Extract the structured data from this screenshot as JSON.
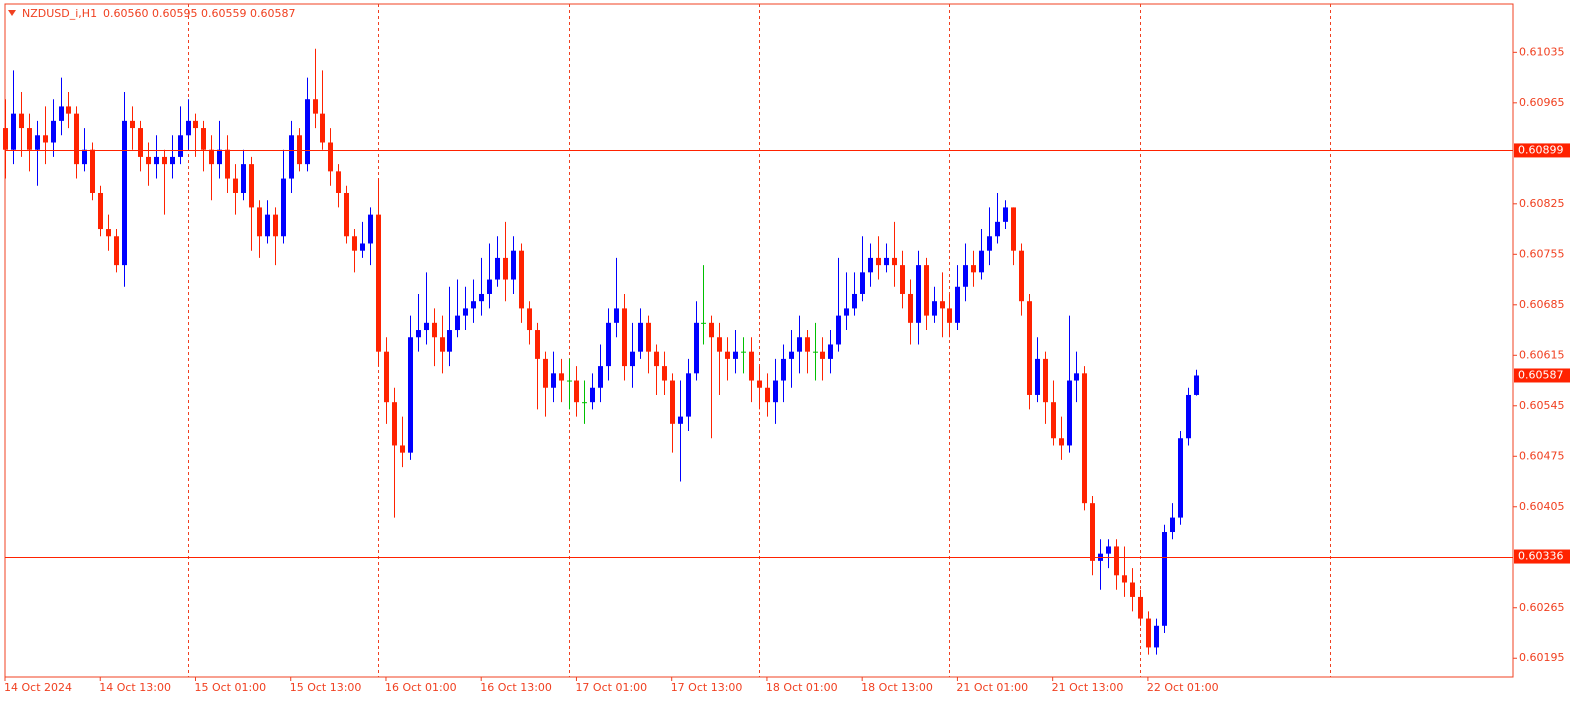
{
  "header": {
    "symbol": "NZDUSD_i,H1",
    "ohlc": "0.60560 0.60595 0.60559 0.60587"
  },
  "chart_data": {
    "type": "candlestick",
    "colors": {
      "up": "#0000ff",
      "down": "#ff2200",
      "doji": "#00c000",
      "frame": "#f04020"
    },
    "xlim": [
      0,
      190
    ],
    "ylim": [
      0.60169,
      0.61102
    ],
    "yticks": [
      0.61035,
      0.60965,
      0.60825,
      0.60755,
      0.60685,
      0.60615,
      0.60545,
      0.60475,
      0.60405,
      0.60265,
      0.60195
    ],
    "xticks": [
      {
        "value": 0,
        "label": "14 Oct 2024"
      },
      {
        "value": 12,
        "label": "14 Oct 13:00"
      },
      {
        "value": 24,
        "label": "15 Oct 01:00"
      },
      {
        "value": 36,
        "label": "15 Oct 13:00"
      },
      {
        "value": 48,
        "label": "16 Oct 01:00"
      },
      {
        "value": 60,
        "label": "16 Oct 13:00"
      },
      {
        "value": 72,
        "label": "17 Oct 01:00"
      },
      {
        "value": 84,
        "label": "17 Oct 13:00"
      },
      {
        "value": 96,
        "label": "18 Oct 01:00"
      },
      {
        "value": 108,
        "label": "18 Oct 13:00"
      },
      {
        "value": 120,
        "label": "21 Oct 01:00"
      },
      {
        "value": 132,
        "label": "21 Oct 13:00"
      },
      {
        "value": 144,
        "label": "22 Oct 01:00"
      }
    ],
    "separators": [
      23,
      47,
      71,
      95,
      119,
      143,
      167
    ],
    "hlines": [
      0.60899,
      0.60336
    ],
    "open": [
      0.6093,
      0.609,
      0.6095,
      0.6093,
      0.609,
      0.6092,
      0.6091,
      0.6094,
      0.6096,
      0.6095,
      0.6088,
      0.609,
      0.6084,
      0.6079,
      0.6078,
      0.6074,
      0.6094,
      0.6093,
      0.6089,
      0.6088,
      0.6089,
      0.6088,
      0.6089,
      0.6092,
      0.6094,
      0.6093,
      0.609,
      0.6088,
      0.609,
      0.6086,
      0.6084,
      0.6088,
      0.6082,
      0.6078,
      0.6081,
      0.6078,
      0.6086,
      0.6092,
      0.6088,
      0.6097,
      0.6095,
      0.6091,
      0.6087,
      0.6084,
      0.6078,
      0.6076,
      0.6077,
      0.6081,
      0.6062,
      0.6055,
      0.6049,
      0.6048,
      0.6064,
      0.6065,
      0.6066,
      0.6064,
      0.6062,
      0.6065,
      0.6067,
      0.6068,
      0.6069,
      0.607,
      0.6072,
      0.6075,
      0.6072,
      0.6076,
      0.6068,
      0.6065,
      0.6061,
      0.6057,
      0.6059,
      0.6058,
      0.6058,
      0.6055,
      0.6055,
      0.6057,
      0.606,
      0.6066,
      0.6068,
      0.606,
      0.6062,
      0.6066,
      0.6062,
      0.606,
      0.6058,
      0.6052,
      0.6053,
      0.6059,
      0.6066,
      0.6066,
      0.6064,
      0.6062,
      0.6061,
      0.6062,
      0.6062,
      0.6058,
      0.6057,
      0.6055,
      0.6058,
      0.6061,
      0.6062,
      0.6064,
      0.6062,
      0.6062,
      0.6061,
      0.6063,
      0.6067,
      0.6068,
      0.607,
      0.6073,
      0.6075,
      0.6074,
      0.6075,
      0.6074,
      0.607,
      0.6066,
      0.6074,
      0.6067,
      0.6069,
      0.6068,
      0.6066,
      0.6071,
      0.6074,
      0.6073,
      0.6076,
      0.6078,
      0.608,
      0.6082,
      0.6076,
      0.6069,
      0.6056,
      0.6061,
      0.6055,
      0.605,
      0.6049,
      0.6058,
      0.6059,
      0.6041,
      0.6033,
      0.6034,
      0.6035,
      0.6031,
      0.603,
      0.6028,
      0.6025,
      0.6021,
      0.6024,
      0.6037,
      0.6039,
      0.605,
      0.6056
    ],
    "high": [
      0.6097,
      0.6101,
      0.6098,
      0.6095,
      0.6094,
      0.6096,
      0.6097,
      0.61,
      0.6098,
      0.6096,
      0.6093,
      0.6091,
      0.6085,
      0.6081,
      0.6079,
      0.6098,
      0.6096,
      0.6094,
      0.6091,
      0.6092,
      0.609,
      0.6092,
      0.6096,
      0.6097,
      0.6095,
      0.6094,
      0.6092,
      0.6094,
      0.6092,
      0.6088,
      0.609,
      0.6089,
      0.6083,
      0.6083,
      0.6082,
      0.609,
      0.6094,
      0.6093,
      0.61,
      0.6104,
      0.6101,
      0.6093,
      0.6088,
      0.6085,
      0.6079,
      0.608,
      0.6082,
      0.6086,
      0.6064,
      0.6057,
      0.6053,
      0.6067,
      0.607,
      0.6073,
      0.6068,
      0.6067,
      0.6071,
      0.6072,
      0.6071,
      0.6072,
      0.6075,
      0.6077,
      0.6078,
      0.608,
      0.6078,
      0.6077,
      0.6069,
      0.6066,
      0.6062,
      0.6062,
      0.6061,
      0.6061,
      0.606,
      0.6058,
      0.6059,
      0.6063,
      0.6068,
      0.6075,
      0.607,
      0.6066,
      0.6068,
      0.6067,
      0.6063,
      0.6062,
      0.6059,
      0.6058,
      0.6061,
      0.6069,
      0.6074,
      0.6067,
      0.6066,
      0.6064,
      0.6065,
      0.6064,
      0.6064,
      0.606,
      0.6059,
      0.6061,
      0.6063,
      0.6065,
      0.6067,
      0.6065,
      0.6066,
      0.6064,
      0.6065,
      0.6075,
      0.6073,
      0.6073,
      0.6078,
      0.6077,
      0.6078,
      0.6077,
      0.608,
      0.6076,
      0.6072,
      0.6076,
      0.6075,
      0.6071,
      0.6073,
      0.607,
      0.6074,
      0.6077,
      0.6076,
      0.6079,
      0.6082,
      0.6084,
      0.6083,
      0.6082,
      0.6077,
      0.607,
      0.6064,
      0.6062,
      0.6058,
      0.6053,
      0.6067,
      0.6062,
      0.606,
      0.6042,
      0.6036,
      0.6036,
      0.6036,
      0.6035,
      0.6032,
      0.6029,
      0.6026,
      0.6025,
      0.6038,
      0.6041,
      0.6051,
      0.6057,
      0.60595
    ],
    "low": [
      0.6086,
      0.6088,
      0.6089,
      0.6087,
      0.6085,
      0.6088,
      0.6089,
      0.6092,
      0.6093,
      0.6086,
      0.6087,
      0.6083,
      0.6078,
      0.6076,
      0.6073,
      0.6071,
      0.609,
      0.6087,
      0.6085,
      0.6086,
      0.6081,
      0.6086,
      0.6088,
      0.609,
      0.6089,
      0.6087,
      0.6083,
      0.6086,
      0.6084,
      0.6081,
      0.6083,
      0.6076,
      0.6075,
      0.6077,
      0.6074,
      0.6077,
      0.6084,
      0.6087,
      0.6087,
      0.6093,
      0.609,
      0.6085,
      0.6082,
      0.6077,
      0.6073,
      0.6075,
      0.6074,
      0.606,
      0.6052,
      0.6039,
      0.6046,
      0.6047,
      0.6062,
      0.6063,
      0.606,
      0.6059,
      0.606,
      0.6064,
      0.6065,
      0.6066,
      0.6067,
      0.6068,
      0.6071,
      0.6069,
      0.607,
      0.6066,
      0.6063,
      0.6054,
      0.6053,
      0.6055,
      0.6055,
      0.6054,
      0.6053,
      0.6052,
      0.6054,
      0.6055,
      0.6058,
      0.6064,
      0.6058,
      0.6057,
      0.6061,
      0.6059,
      0.6056,
      0.6056,
      0.6048,
      0.6044,
      0.6051,
      0.6058,
      0.6063,
      0.605,
      0.6056,
      0.6058,
      0.6059,
      0.6059,
      0.6055,
      0.6054,
      0.6053,
      0.6052,
      0.6055,
      0.6057,
      0.6059,
      0.6059,
      0.6058,
      0.6058,
      0.6059,
      0.6062,
      0.6065,
      0.6067,
      0.6069,
      0.6071,
      0.6072,
      0.6073,
      0.6071,
      0.6068,
      0.6063,
      0.6063,
      0.6065,
      0.6066,
      0.6064,
      0.6064,
      0.6065,
      0.6069,
      0.6071,
      0.6072,
      0.6074,
      0.6077,
      0.6079,
      0.6074,
      0.6067,
      0.6054,
      0.6055,
      0.6052,
      0.6049,
      0.6047,
      0.6048,
      0.6055,
      0.604,
      0.6031,
      0.6029,
      0.6032,
      0.6029,
      0.6028,
      0.6026,
      0.6024,
      0.602,
      0.602,
      0.6023,
      0.6036,
      0.6038,
      0.6049,
      0.60559
    ],
    "close": [
      0.609,
      0.6095,
      0.6093,
      0.609,
      0.6092,
      0.6091,
      0.6094,
      0.6096,
      0.6095,
      0.6088,
      0.609,
      0.6084,
      0.6079,
      0.6078,
      0.6074,
      0.6094,
      0.6093,
      0.6089,
      0.6088,
      0.6089,
      0.6088,
      0.6089,
      0.6092,
      0.6094,
      0.6093,
      0.609,
      0.6088,
      0.609,
      0.6086,
      0.6084,
      0.6088,
      0.6082,
      0.6078,
      0.6081,
      0.6078,
      0.6086,
      0.6092,
      0.6088,
      0.6097,
      0.6095,
      0.6091,
      0.6087,
      0.6084,
      0.6078,
      0.6076,
      0.6077,
      0.6081,
      0.6062,
      0.6055,
      0.6049,
      0.6048,
      0.6064,
      0.6065,
      0.6066,
      0.6064,
      0.6062,
      0.6065,
      0.6067,
      0.6068,
      0.6069,
      0.607,
      0.6072,
      0.6075,
      0.6072,
      0.6076,
      0.6068,
      0.6065,
      0.6061,
      0.6057,
      0.6059,
      0.6058,
      0.6058,
      0.6055,
      0.6055,
      0.6057,
      0.606,
      0.6066,
      0.6068,
      0.606,
      0.6062,
      0.6066,
      0.6062,
      0.606,
      0.6058,
      0.6052,
      0.6053,
      0.6059,
      0.6066,
      0.6066,
      0.6064,
      0.6062,
      0.6061,
      0.6062,
      0.6062,
      0.6058,
      0.6057,
      0.6055,
      0.6058,
      0.6061,
      0.6062,
      0.6064,
      0.6062,
      0.6062,
      0.6061,
      0.6063,
      0.6067,
      0.6068,
      0.607,
      0.6073,
      0.6075,
      0.6074,
      0.6075,
      0.6074,
      0.607,
      0.6066,
      0.6074,
      0.6067,
      0.6069,
      0.6068,
      0.6066,
      0.6071,
      0.6074,
      0.6073,
      0.6076,
      0.6078,
      0.608,
      0.6082,
      0.6076,
      0.6069,
      0.6056,
      0.6061,
      0.6055,
      0.605,
      0.6049,
      0.6058,
      0.6059,
      0.6041,
      0.6033,
      0.6034,
      0.6035,
      0.6031,
      0.603,
      0.6028,
      0.6025,
      0.6021,
      0.6024,
      0.6037,
      0.6039,
      0.605,
      0.6056,
      0.60587
    ]
  }
}
